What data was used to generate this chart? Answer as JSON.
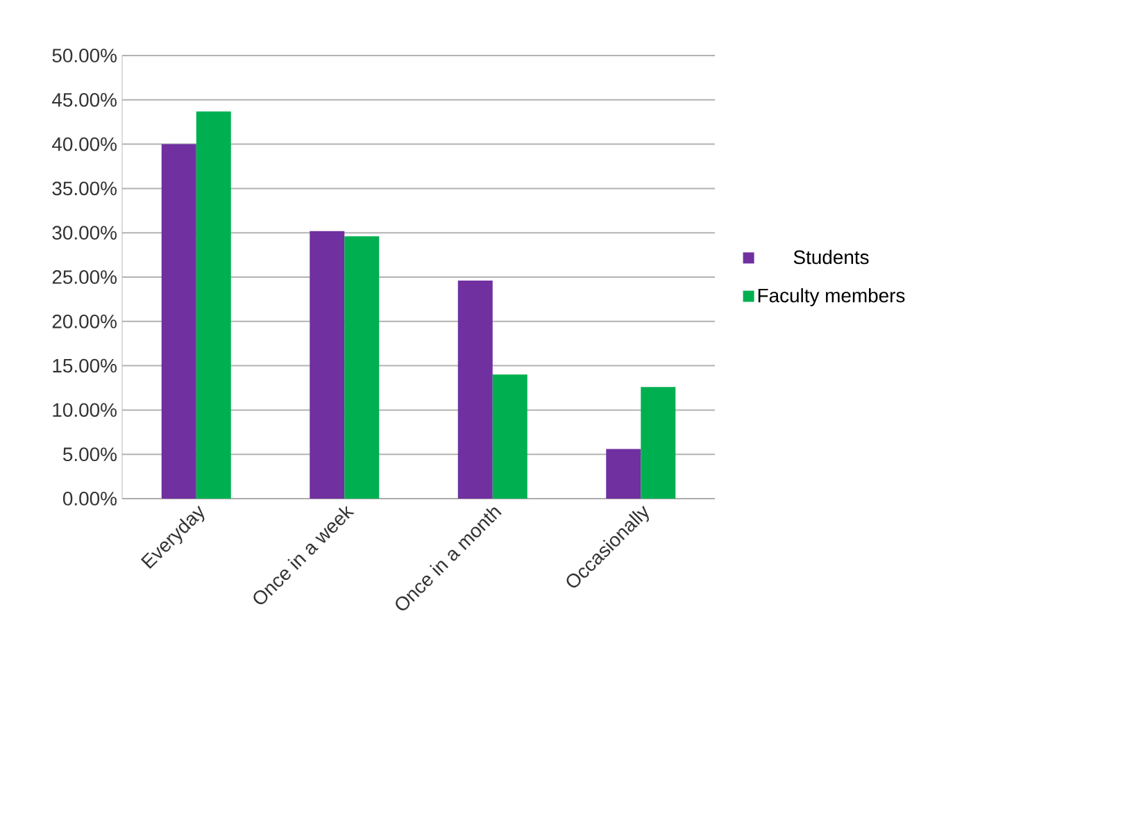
{
  "chart_data": {
    "type": "bar",
    "categories": [
      "Everyday",
      "Once in a week",
      "Once in a month",
      "Occasionally"
    ],
    "series": [
      {
        "name": "Students",
        "color": "#7030a0",
        "values": [
          40.0,
          30.2,
          24.6,
          5.6
        ]
      },
      {
        "name": "Faculty members",
        "color": "#00b050",
        "values": [
          43.7,
          29.6,
          14.0,
          12.6
        ]
      }
    ],
    "ylim": [
      0,
      50
    ],
    "yticks": [
      {
        "value": 0,
        "label": "0.00%"
      },
      {
        "value": 5,
        "label": "5.00%"
      },
      {
        "value": 10,
        "label": "10.00%"
      },
      {
        "value": 15,
        "label": "15.00%"
      },
      {
        "value": 20,
        "label": "20.00%"
      },
      {
        "value": 25,
        "label": "25.00%"
      },
      {
        "value": 30,
        "label": "30.00%"
      },
      {
        "value": 35,
        "label": "35.00%"
      },
      {
        "value": 40,
        "label": "40.00%"
      },
      {
        "value": 45,
        "label": "45.00%"
      },
      {
        "value": 50,
        "label": "50.00%"
      }
    ],
    "grid": "y",
    "legend": "right"
  }
}
